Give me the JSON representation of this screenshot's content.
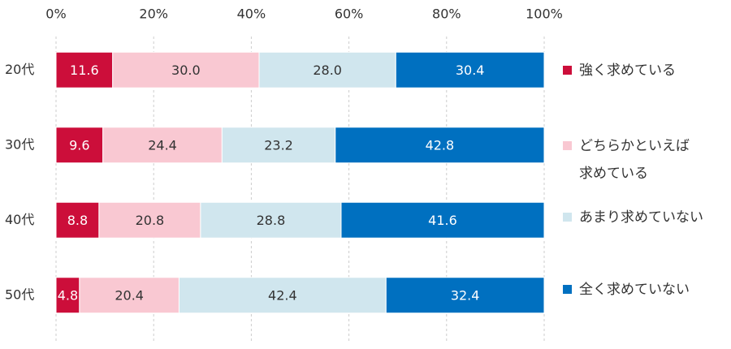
{
  "chart_data": {
    "type": "stacked-bar-horizontal",
    "categories": [
      "20代",
      "30代",
      "40代",
      "50代"
    ],
    "series": [
      {
        "name": "強く求めている",
        "color": "#cc0e3a",
        "values": [
          11.6,
          9.6,
          8.8,
          4.8
        ],
        "value_labels": [
          "11.6",
          "9.6",
          "8.8",
          "4.8"
        ]
      },
      {
        "name": "どちらかといえば\n求めている",
        "color": "#f9c8d2",
        "values": [
          30.0,
          24.4,
          20.8,
          20.4
        ],
        "value_labels": [
          "30.0",
          "24.4",
          "20.8",
          "20.4"
        ]
      },
      {
        "name": "あまり求めていない",
        "color": "#d0e6ee",
        "values": [
          28.0,
          23.2,
          28.8,
          42.4
        ],
        "value_labels": [
          "28.0",
          "23.2",
          "28.8",
          "42.4"
        ]
      },
      {
        "name": "全く求めていない",
        "color": "#0070c0",
        "values": [
          30.4,
          42.8,
          41.6,
          32.4
        ],
        "value_labels": [
          "30.4",
          "42.8",
          "41.6",
          "32.4"
        ]
      }
    ],
    "xlim": [
      0,
      100
    ],
    "xticks": [
      {
        "value": 0,
        "label": "0%"
      },
      {
        "value": 20,
        "label": "20%"
      },
      {
        "value": 40,
        "label": "40%"
      },
      {
        "value": 60,
        "label": "60%"
      },
      {
        "value": 80,
        "label": "80%"
      },
      {
        "value": 100,
        "label": "100%"
      }
    ],
    "grid": true,
    "legend": "right"
  }
}
